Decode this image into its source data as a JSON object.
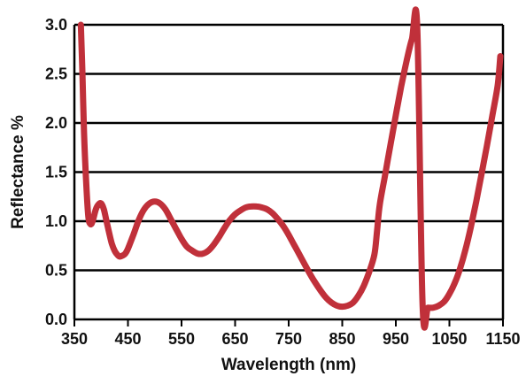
{
  "chart_data": {
    "type": "line",
    "title": "",
    "xlabel": "Wavelength (nm)",
    "ylabel": "Reflectance %",
    "xlim": [
      350,
      1150
    ],
    "ylim": [
      0.0,
      3.0
    ],
    "x_ticks": [
      "350",
      "450",
      "550",
      "650",
      "750",
      "850",
      "950",
      "1050",
      "1150"
    ],
    "y_ticks": [
      "0.0",
      "0.5",
      "1.0",
      "1.5",
      "2.0",
      "2.5",
      "3.0"
    ],
    "grid": "horizontal",
    "legend": "none",
    "series": [
      {
        "color": "#c0303a",
        "x": [
          362,
          365,
          368,
          372,
          376,
          380,
          384,
          390,
          395,
          400,
          405,
          410,
          415,
          420,
          425,
          430,
          435,
          440,
          445,
          450,
          460,
          470,
          480,
          490,
          500,
          510,
          520,
          530,
          540,
          550,
          560,
          570,
          580,
          590,
          600,
          610,
          620,
          630,
          640,
          650,
          660,
          670,
          680,
          690,
          700,
          710,
          720,
          730,
          740,
          750,
          760,
          770,
          780,
          790,
          800,
          810,
          820,
          830,
          840,
          850,
          860,
          870,
          880,
          890,
          900,
          910,
          915,
          920,
          930,
          940,
          950,
          960,
          970,
          980,
          990,
          1000,
          1010,
          1020,
          1030,
          1040,
          1050,
          1060,
          1070,
          1080,
          1090,
          1100,
          1110,
          1120,
          1130,
          1140,
          1145
        ],
        "y": [
          3.0,
          2.5,
          1.9,
          1.4,
          1.05,
          0.97,
          1.0,
          1.12,
          1.17,
          1.18,
          1.12,
          1.0,
          0.88,
          0.77,
          0.7,
          0.66,
          0.64,
          0.65,
          0.67,
          0.72,
          0.86,
          1.01,
          1.12,
          1.18,
          1.2,
          1.18,
          1.12,
          1.02,
          0.92,
          0.82,
          0.74,
          0.7,
          0.67,
          0.67,
          0.7,
          0.76,
          0.84,
          0.93,
          1.01,
          1.07,
          1.11,
          1.14,
          1.15,
          1.15,
          1.14,
          1.12,
          1.08,
          1.02,
          0.95,
          0.86,
          0.76,
          0.66,
          0.56,
          0.46,
          0.37,
          0.29,
          0.22,
          0.17,
          0.14,
          0.13,
          0.14,
          0.17,
          0.24,
          0.34,
          0.48,
          0.66,
          0.9,
          1.17,
          1.47,
          1.78,
          2.08,
          2.37,
          2.63,
          2.85,
          2.97,
          0.13,
          0.12,
          0.12,
          0.14,
          0.18,
          0.26,
          0.37,
          0.52,
          0.71,
          0.94,
          1.2,
          1.48,
          1.77,
          2.07,
          2.38,
          2.68
        ]
      }
    ]
  }
}
